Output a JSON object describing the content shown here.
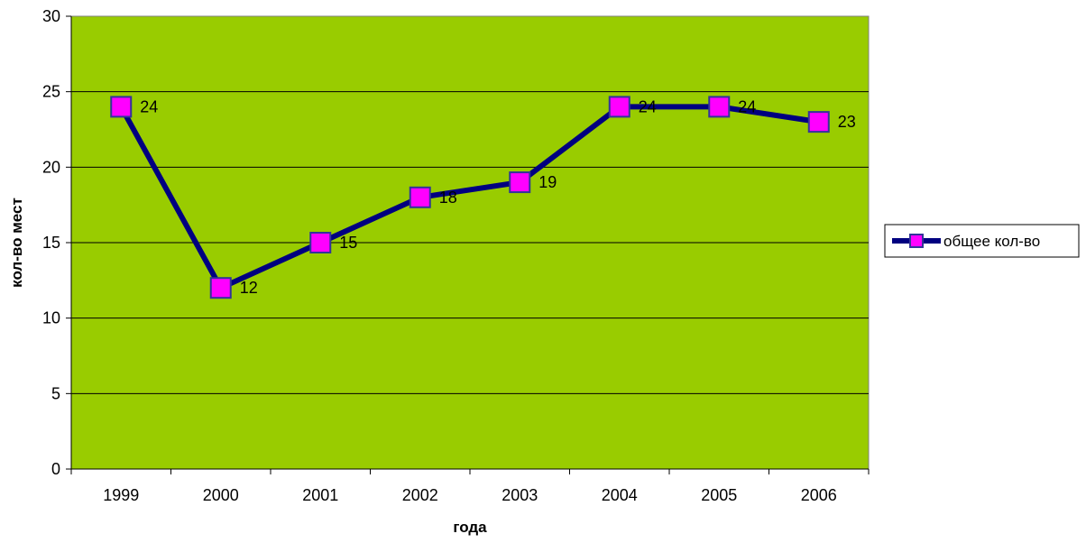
{
  "chart_data": {
    "type": "line",
    "x": [
      "1999",
      "2000",
      "2001",
      "2002",
      "2003",
      "2004",
      "2005",
      "2006"
    ],
    "series": [
      {
        "name": "общее кол-во",
        "values": [
          24,
          12,
          15,
          18,
          19,
          24,
          24,
          23
        ]
      }
    ],
    "xlabel": "года",
    "ylabel": "кол-во мест",
    "ylim": [
      0,
      30
    ],
    "yticks": [
      0,
      5,
      10,
      15,
      20,
      25,
      30
    ],
    "grid": "horizontal",
    "legend_position": "right",
    "data_labels": true,
    "colors": {
      "plot_background": "#99CC00",
      "line": "#000080",
      "marker_fill": "#FF00FF",
      "marker_border": "#333399",
      "grid": "#000000"
    }
  }
}
